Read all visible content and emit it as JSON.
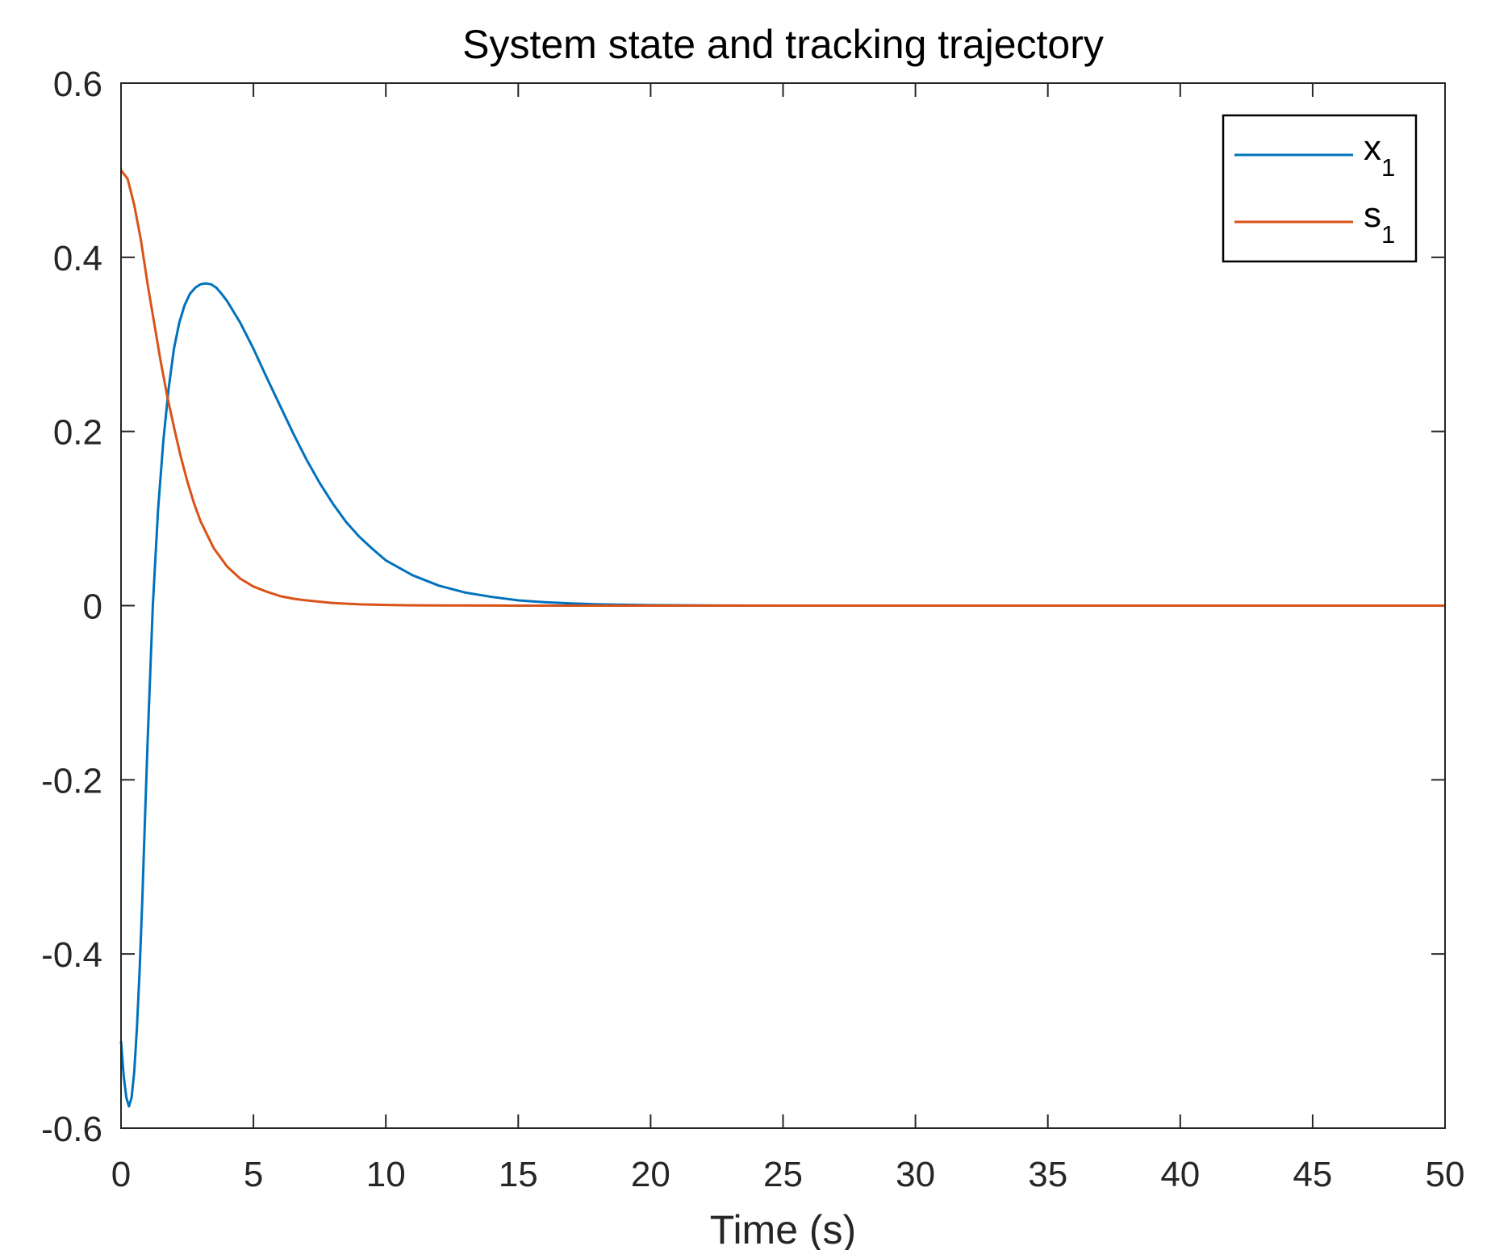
{
  "chart_data": {
    "type": "line",
    "title": "System state and tracking trajectory",
    "xlabel": "Time (s)",
    "ylabel": "",
    "xlim": [
      0,
      50
    ],
    "ylim": [
      -0.6,
      0.6
    ],
    "xticks": [
      0,
      5,
      10,
      15,
      20,
      25,
      30,
      35,
      40,
      45,
      50
    ],
    "xtick_labels": [
      "0",
      "5",
      "10",
      "15",
      "20",
      "25",
      "30",
      "35",
      "40",
      "45",
      "50"
    ],
    "yticks": [
      0.6,
      0.4,
      0.2,
      0,
      -0.2,
      -0.4,
      -0.6
    ],
    "ytick_labels": [
      "0.6",
      "0.4",
      "0.2",
      "0",
      "-0.2",
      "-0.4",
      "-0.6"
    ],
    "grid": false,
    "legend_position": "top-right",
    "series": [
      {
        "name": "x",
        "subscript": "1",
        "color": "#0072BD",
        "x": [
          0,
          0.1,
          0.2,
          0.3,
          0.4,
          0.5,
          0.6,
          0.7,
          0.8,
          0.9,
          1.0,
          1.2,
          1.4,
          1.6,
          1.8,
          2.0,
          2.2,
          2.4,
          2.6,
          2.8,
          3.0,
          3.2,
          3.4,
          3.6,
          3.8,
          4.0,
          4.5,
          5.0,
          5.5,
          6.0,
          6.5,
          7.0,
          7.5,
          8.0,
          8.5,
          9.0,
          9.5,
          10.0,
          11.0,
          12.0,
          13.0,
          14.0,
          15.0,
          16.0,
          17.0,
          18.0,
          19.0,
          20.0,
          22.0,
          25.0,
          30.0,
          35.0,
          40.0,
          45.0,
          50.0
        ],
        "y": [
          -0.5,
          -0.54,
          -0.565,
          -0.575,
          -0.565,
          -0.535,
          -0.485,
          -0.42,
          -0.34,
          -0.25,
          -0.16,
          0.0,
          0.11,
          0.19,
          0.25,
          0.295,
          0.325,
          0.345,
          0.358,
          0.365,
          0.369,
          0.37,
          0.369,
          0.365,
          0.358,
          0.35,
          0.325,
          0.295,
          0.262,
          0.23,
          0.198,
          0.168,
          0.141,
          0.117,
          0.096,
          0.079,
          0.065,
          0.052,
          0.035,
          0.023,
          0.015,
          0.01,
          0.006,
          0.004,
          0.0025,
          0.0015,
          0.001,
          0.0006,
          0.0002,
          0.0,
          0.0,
          0.0,
          0.0,
          0.0,
          0.0
        ]
      },
      {
        "name": "s",
        "subscript": "1",
        "color": "#D95319",
        "x": [
          0,
          0.25,
          0.5,
          0.75,
          1.0,
          1.25,
          1.5,
          1.75,
          2.0,
          2.25,
          2.5,
          2.75,
          3.0,
          3.5,
          4.0,
          4.5,
          5.0,
          5.5,
          6.0,
          6.5,
          7.0,
          8.0,
          9.0,
          10.0,
          11.0,
          12.0,
          14.0,
          16.0,
          20.0,
          25.0,
          30.0,
          40.0,
          50.0
        ],
        "y": [
          0.5,
          0.49,
          0.46,
          0.42,
          0.37,
          0.325,
          0.28,
          0.24,
          0.205,
          0.172,
          0.143,
          0.118,
          0.097,
          0.066,
          0.045,
          0.031,
          0.022,
          0.016,
          0.011,
          0.008,
          0.006,
          0.003,
          0.0015,
          0.0008,
          0.0004,
          0.0002,
          0.0001,
          0.0,
          0.0,
          0.0,
          0.0,
          0.0,
          0.0
        ]
      }
    ]
  }
}
